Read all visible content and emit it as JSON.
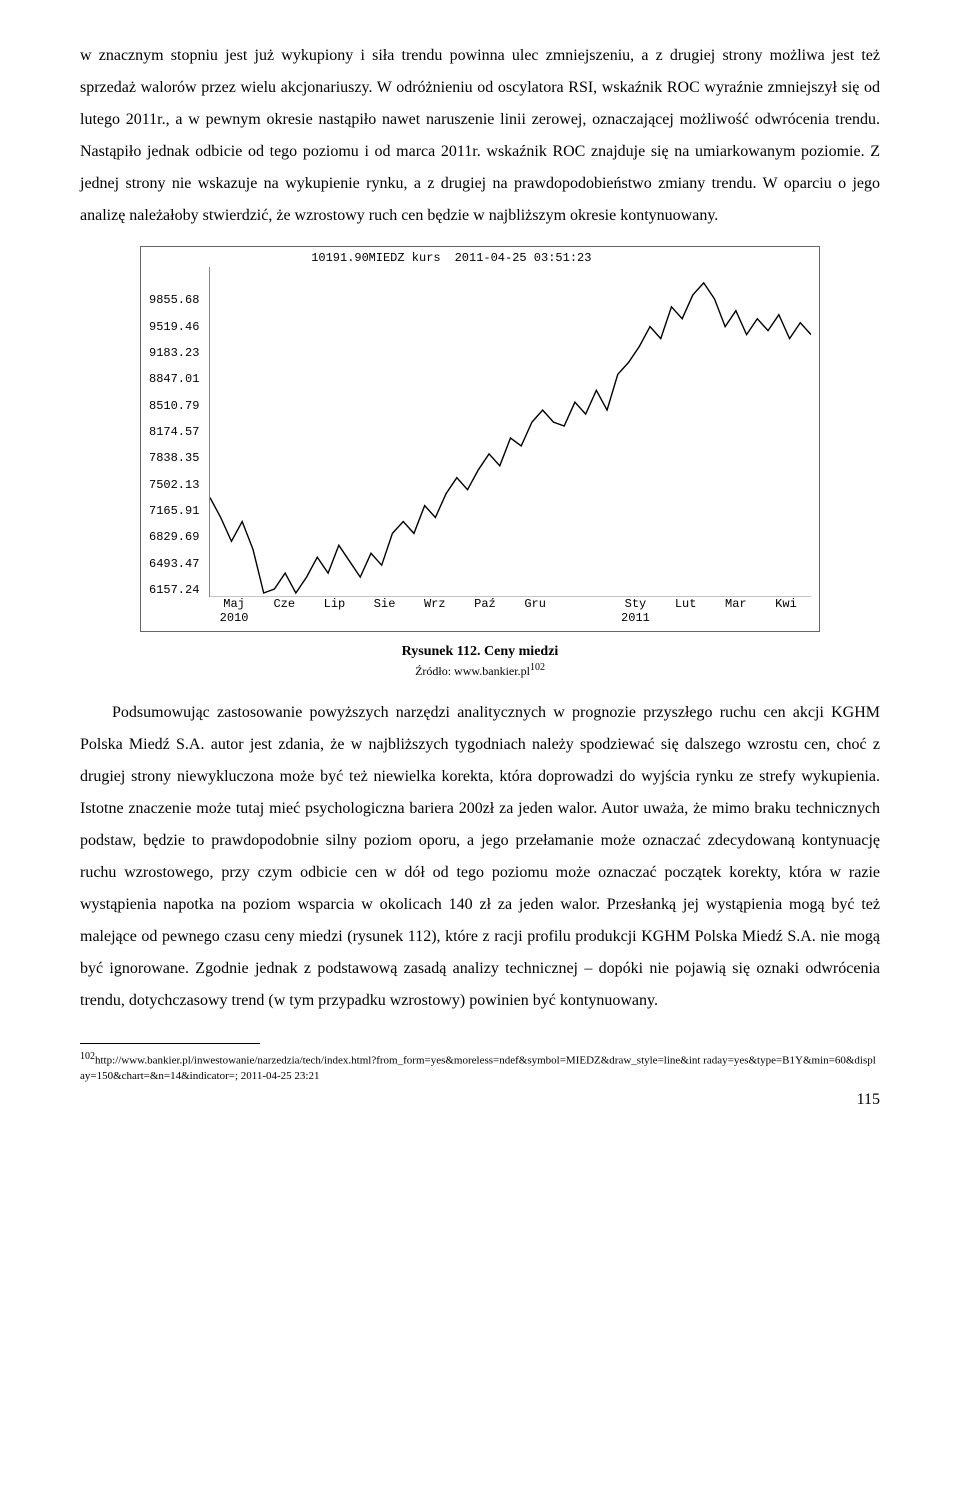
{
  "paragraph1": "w znacznym stopniu jest już wykupiony i siła trendu powinna ulec zmniejszeniu, a z drugiej strony możliwa jest też sprzedaż walorów przez wielu akcjonariuszy. W odróżnieniu od oscylatora RSI, wskaźnik ROC wyraźnie zmniejszył się od lutego 2011r., a w pewnym okresie nastąpiło nawet naruszenie linii zerowej, oznaczającej możliwość odwrócenia trendu. Nastąpiło jednak odbicie od tego poziomu i od marca 2011r. wskaźnik ROC znajduje się na umiarkowanym poziomie. Z jednej strony nie wskazuje na wykupienie rynku, a z drugiej na prawdopodobieństwo zmiany trendu. W oparciu o jego analizę należałoby stwierdzić, że wzrostowy ruch cen będzie w najbliższym okresie kontynuowany.",
  "paragraph2_a": "Podsumowując zastosowanie powyższych narzędzi analitycznych w prognozie przyszłego ruchu cen akcji KGHM Polska Miedź S.A. autor jest zdania, że w najbliższych tygodniach należy spodziewać się dalszego wzrostu cen, choć z drugiej strony niewykluczona może być też niewielka korekta, która doprowadzi do wyjścia rynku ze strefy wykupienia. Istotne znaczenie może tutaj mieć psychologiczna bariera 200zł za jeden walor. Autor uważa, że mimo braku technicznych podstaw, będzie to prawdopodobnie silny poziom oporu, a jego przełamanie może oznaczać zdecydowaną kontynuację ruchu wzrostowego, przy czym odbicie cen w dół od tego poziomu może oznaczać początek korekty, która w razie wystąpienia napotka na poziom wsparcia w okolicach 140 zł za jeden walor. Przesłanką jej wystąpienia mogą być też malejące od pewnego czasu ceny miedzi (rysunek 112), które z racji profilu produkcji KGHM Polska Miedź S.A. nie mogą być ignorowane. Zgodnie jednak z podstawową zasadą analizy technicznej – dopóki nie pojawią się oznaki odwrócenia trendu, dotychczasowy trend (w tym przypadku wzrostowy) powinien być kontynuowany.",
  "chart": {
    "type": "line",
    "title_parts": [
      "MIEDZ kurs",
      "2011-04-25 03:51:23"
    ],
    "y_ticks": [
      "10191.90",
      "9855.68",
      "9519.46",
      "9183.23",
      "8847.01",
      "8510.79",
      "8174.57",
      "7838.35",
      "7502.13",
      "7165.91",
      "6829.69",
      "6493.47",
      "6157.24"
    ],
    "x_ticks_top": [
      "Maj",
      "",
      "",
      "",
      "",
      "",
      "",
      "",
      "Sty",
      "",
      "",
      ""
    ],
    "x_ticks_bot": [
      "2010",
      "Cze",
      "Lip",
      "Sie",
      "Wrz",
      "Paź",
      "Gru",
      "",
      "2011",
      "Lut",
      "Mar",
      "Kwi"
    ],
    "x_ticks_merge": [
      "Maj",
      "Cze",
      "Lip",
      "Sie",
      "Wrz",
      "Paź",
      "Gru",
      "",
      "Sty",
      "Lut",
      "Mar",
      "Kwi"
    ],
    "x_ticks_years": [
      "2010",
      "",
      "",
      "",
      "",
      "",
      "",
      "",
      "2011",
      "",
      "",
      ""
    ],
    "ymin": 6100,
    "ymax": 10250,
    "line_color": "#000000",
    "bg_color": "#ffffff",
    "tick_font": "12",
    "series_pts": [
      [
        0,
        7350
      ],
      [
        2,
        7100
      ],
      [
        4,
        6800
      ],
      [
        6,
        7050
      ],
      [
        8,
        6700
      ],
      [
        10,
        6150
      ],
      [
        12,
        6200
      ],
      [
        14,
        6400
      ],
      [
        16,
        6150
      ],
      [
        18,
        6350
      ],
      [
        20,
        6600
      ],
      [
        22,
        6400
      ],
      [
        24,
        6750
      ],
      [
        26,
        6550
      ],
      [
        28,
        6350
      ],
      [
        30,
        6650
      ],
      [
        32,
        6500
      ],
      [
        34,
        6900
      ],
      [
        36,
        7050
      ],
      [
        38,
        6900
      ],
      [
        40,
        7250
      ],
      [
        42,
        7100
      ],
      [
        44,
        7400
      ],
      [
        46,
        7600
      ],
      [
        48,
        7450
      ],
      [
        50,
        7700
      ],
      [
        52,
        7900
      ],
      [
        54,
        7750
      ],
      [
        56,
        8100
      ],
      [
        58,
        8000
      ],
      [
        60,
        8300
      ],
      [
        62,
        8450
      ],
      [
        64,
        8300
      ],
      [
        66,
        8250
      ],
      [
        68,
        8550
      ],
      [
        70,
        8400
      ],
      [
        72,
        8700
      ],
      [
        74,
        8450
      ],
      [
        76,
        8900
      ],
      [
        78,
        9050
      ],
      [
        80,
        9250
      ],
      [
        82,
        9500
      ],
      [
        84,
        9350
      ],
      [
        86,
        9750
      ],
      [
        88,
        9600
      ],
      [
        90,
        9900
      ],
      [
        92,
        10050
      ],
      [
        94,
        9850
      ],
      [
        96,
        9500
      ],
      [
        98,
        9700
      ],
      [
        100,
        9400
      ],
      [
        102,
        9600
      ],
      [
        104,
        9450
      ],
      [
        106,
        9650
      ],
      [
        108,
        9350
      ],
      [
        110,
        9550
      ],
      [
        112,
        9400
      ]
    ]
  },
  "caption": "Rysunek 112. Ceny miedzi",
  "source_label": "Źródło: www.bankier.pl",
  "source_sup": "102",
  "footnote_num": "102",
  "footnote_text": "http://www.bankier.pl/inwestowanie/narzedzia/tech/index.html?from_form=yes&moreless=ndef&symbol=MIEDZ&draw_style=line&int raday=yes&type=B1Y&min=60&display=150&chart=&n=14&indicator=; 2011-04-25 23:21",
  "page_number": "115"
}
